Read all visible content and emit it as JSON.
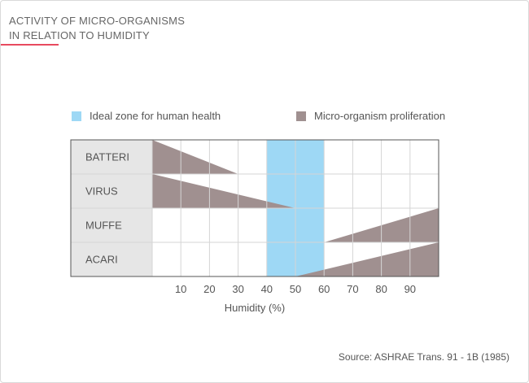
{
  "title_lines": [
    "ACTIVITY OF MICRO-ORGANISMS",
    "IN RELATION TO HUMIDITY"
  ],
  "legend": {
    "ideal_label": "Ideal zone for human health",
    "proliferation_label": "Micro-organism proliferation"
  },
  "colors": {
    "ideal_zone": "#9ed8f5",
    "proliferation": "#a09090",
    "row_label_bg": "#e6e6e6",
    "grid": "#d5d5d5",
    "border": "#555555",
    "accent": "#e84a5f"
  },
  "source": "Source: ASHRAE Trans. 91 - 1B (1985)",
  "chart_data": {
    "type": "area",
    "xlabel": "Humidity (%)",
    "ylabel": "",
    "xlim": [
      0,
      100
    ],
    "x_ticks": [
      10,
      20,
      30,
      40,
      50,
      60,
      70,
      80,
      90
    ],
    "ideal_zone": [
      40,
      60
    ],
    "rows": [
      {
        "name": "BATTERI",
        "polygon": [
          [
            0,
            1
          ],
          [
            30,
            0
          ],
          [
            0,
            0
          ]
        ]
      },
      {
        "name": "VIRUS",
        "polygon": [
          [
            0,
            1
          ],
          [
            50,
            0
          ],
          [
            0,
            0
          ]
        ]
      },
      {
        "name": "MUFFE",
        "polygon": [
          [
            60,
            0
          ],
          [
            100,
            1
          ],
          [
            100,
            0
          ]
        ]
      },
      {
        "name": "ACARI",
        "polygon": [
          [
            50,
            0
          ],
          [
            100,
            1
          ],
          [
            100,
            0
          ]
        ]
      }
    ]
  }
}
